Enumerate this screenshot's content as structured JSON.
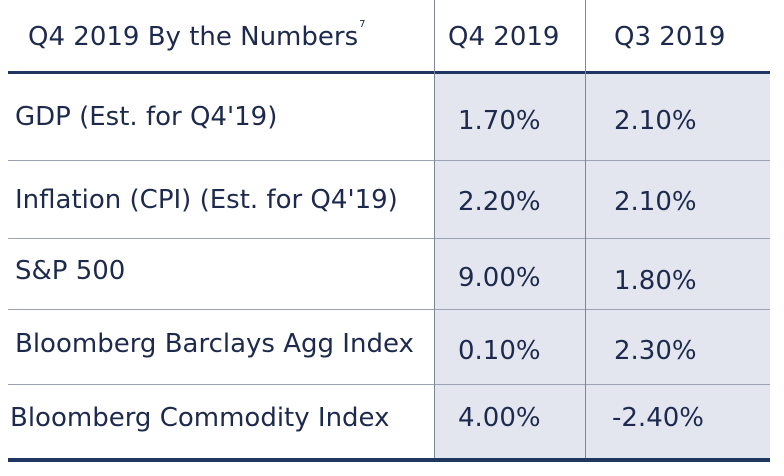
{
  "header": {
    "title": "Q4 2019 By the Numbers",
    "footnote": "7",
    "col_q4": "Q4 2019",
    "col_q3": "Q3 2019"
  },
  "rows": [
    {
      "label": "GDP (Est. for Q4'19)",
      "q4": "1.70%",
      "q3": "2.10%"
    },
    {
      "label": "Inflation (CPI) (Est. for Q4'19)",
      "q4": "2.20%",
      "q3": "2.10%"
    },
    {
      "label": "S&P 500",
      "q4": "9.00%",
      "q3": "1.80%"
    },
    {
      "label": "Bloomberg Barclays Agg Index",
      "q4": "0.10%",
      "q3": "2.30%"
    },
    {
      "label": "Bloomberg Commodity Index",
      "q4": "4.00%",
      "q3": "-2.40%"
    }
  ],
  "colors": {
    "text": "#1d2a4d",
    "rule": "#1f3760",
    "shade": "#e3e6ef"
  }
}
